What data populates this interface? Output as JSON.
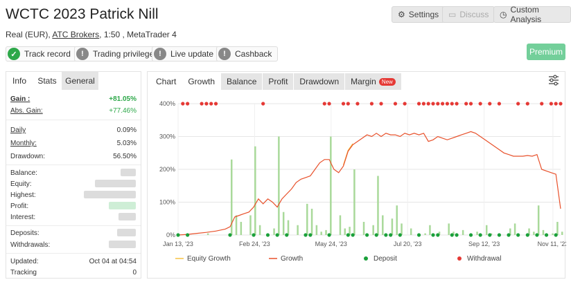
{
  "header": {
    "title": "WCTC 2023 Patrick Nill",
    "account_type": "Real (EUR),",
    "broker": "ATC Brokers",
    "leverage": ", 1:50 , MetaTrader 4"
  },
  "top_buttons": {
    "settings": "Settings",
    "discuss": "Discuss",
    "custom_analysis": "Custom Analysis"
  },
  "badges": [
    {
      "label": "Track record",
      "status": "verified",
      "icon": "check-icon"
    },
    {
      "label": "Trading privileges",
      "status": "not-verified",
      "icon": "exclamation-icon"
    },
    {
      "label": "Live update",
      "status": "not-verified",
      "icon": "exclamation-icon"
    },
    {
      "label": "Cashback",
      "status": "not-verified",
      "icon": "exclamation-icon"
    }
  ],
  "premium_label": "Premium",
  "left_tabs": [
    "Info",
    "Stats",
    "General"
  ],
  "stats": {
    "gain_label": "Gain :",
    "gain_value": "+81.05%",
    "abs_gain_label": "Abs. Gain:",
    "abs_gain_value": "+77.46%",
    "daily_label": "Daily",
    "daily_value": "0.09%",
    "monthly_label": "Monthly:",
    "monthly_value": "5.03%",
    "drawdown_label": "Drawdown:",
    "drawdown_value": "56.50%",
    "balance_label": "Balance:",
    "equity_label": "Equity:",
    "highest_label": "Highest:",
    "profit_label": "Profit:",
    "interest_label": "Interest:",
    "deposits_label": "Deposits:",
    "withdrawals_label": "Withdrawals:",
    "updated_label": "Updated:",
    "updated_value": "Oct 04 at 04:54",
    "tracking_label": "Tracking",
    "tracking_value": "0"
  },
  "chart_tabs": {
    "chart": "Chart",
    "growth": "Growth",
    "balance": "Balance",
    "profit": "Profit",
    "drawdown": "Drawdown",
    "margin": "Margin",
    "new_badge": "New"
  },
  "colors": {
    "growth_line": "#e8502a",
    "equity_line": "#f5c242",
    "bars": "#a9d99a",
    "deposit": "#1aa03a",
    "withdrawal": "#e53935",
    "positive": "#2ea84a"
  },
  "chart_data": {
    "type": "line",
    "y_ticks": [
      "400%",
      "300%",
      "200%",
      "100%",
      "0%"
    ],
    "y_range": [
      0,
      400
    ],
    "x_ticks": [
      "Jan 13, '23",
      "Feb 24, '23",
      "May 24, '23",
      "Jul 20, '23",
      "Sep 12, '23",
      "Nov 11, '23"
    ],
    "legend": [
      "Equity Growth",
      "Growth",
      "Deposit",
      "Withdrawal"
    ],
    "growth_series": [
      [
        0,
        0
      ],
      [
        2,
        2
      ],
      [
        4,
        5
      ],
      [
        6,
        8
      ],
      [
        8,
        12
      ],
      [
        10,
        18
      ],
      [
        11,
        25
      ],
      [
        12,
        55
      ],
      [
        13,
        60
      ],
      [
        14,
        65
      ],
      [
        15,
        70
      ],
      [
        16,
        85
      ],
      [
        17,
        110
      ],
      [
        18,
        95
      ],
      [
        19,
        110
      ],
      [
        20,
        100
      ],
      [
        21,
        85
      ],
      [
        22,
        110
      ],
      [
        23,
        125
      ],
      [
        24,
        140
      ],
      [
        25,
        160
      ],
      [
        26,
        170
      ],
      [
        27,
        175
      ],
      [
        28,
        180
      ],
      [
        29,
        200
      ],
      [
        30,
        220
      ],
      [
        31,
        230
      ],
      [
        32,
        230
      ],
      [
        33,
        200
      ],
      [
        34,
        190
      ],
      [
        35,
        210
      ],
      [
        36,
        255
      ],
      [
        37,
        275
      ],
      [
        38,
        285
      ],
      [
        39,
        295
      ],
      [
        40,
        305
      ],
      [
        41,
        300
      ],
      [
        42,
        310
      ],
      [
        43,
        300
      ],
      [
        44,
        310
      ],
      [
        45,
        305
      ],
      [
        46,
        305
      ],
      [
        47,
        300
      ],
      [
        48,
        310
      ],
      [
        49,
        305
      ],
      [
        50,
        310
      ],
      [
        51,
        305
      ],
      [
        52,
        310
      ],
      [
        53,
        285
      ],
      [
        54,
        290
      ],
      [
        55,
        300
      ],
      [
        56,
        295
      ],
      [
        57,
        290
      ],
      [
        58,
        295
      ],
      [
        59,
        300
      ],
      [
        60,
        305
      ],
      [
        61,
        310
      ],
      [
        62,
        315
      ],
      [
        63,
        310
      ],
      [
        64,
        300
      ],
      [
        65,
        290
      ],
      [
        66,
        280
      ],
      [
        67,
        270
      ],
      [
        68,
        260
      ],
      [
        69,
        250
      ],
      [
        70,
        245
      ],
      [
        71,
        240
      ],
      [
        72,
        240
      ],
      [
        73,
        240
      ],
      [
        74,
        242
      ],
      [
        75,
        240
      ],
      [
        76,
        245
      ],
      [
        77,
        200
      ],
      [
        78,
        195
      ],
      [
        79,
        190
      ],
      [
        80,
        185
      ],
      [
        81,
        80
      ]
    ],
    "bar_values": [
      0,
      0,
      0,
      0,
      0,
      0,
      5,
      0,
      0,
      0,
      0,
      230,
      60,
      40,
      0,
      60,
      270,
      30,
      0,
      0,
      20,
      300,
      70,
      45,
      0,
      30,
      0,
      95,
      80,
      30,
      10,
      15,
      300,
      0,
      60,
      20,
      25,
      200,
      0,
      40,
      0,
      30,
      180,
      60,
      0,
      50,
      90,
      35,
      0,
      20,
      0,
      0,
      5,
      30,
      0,
      10,
      0,
      35,
      10,
      0,
      15,
      0,
      0,
      10,
      0,
      30,
      5,
      0,
      0,
      0,
      20,
      35,
      0,
      0,
      20,
      10,
      90,
      15,
      0,
      5,
      40,
      10
    ],
    "deposit_markers": [
      0,
      2,
      11,
      16,
      19,
      21,
      23,
      27,
      28,
      32,
      36,
      37,
      40,
      42,
      44,
      45,
      47,
      51,
      54,
      55,
      58,
      59,
      62,
      64,
      66,
      68,
      70,
      72,
      74,
      76,
      78,
      80
    ],
    "withdrawal_markers": [
      1,
      2,
      5,
      6,
      7,
      8,
      18,
      31,
      32,
      35,
      36,
      38,
      41,
      43,
      46,
      48,
      51,
      52,
      53,
      54,
      55,
      56,
      57,
      58,
      59,
      61,
      62,
      64,
      66,
      68,
      72,
      74,
      77,
      79,
      80,
      81
    ]
  }
}
